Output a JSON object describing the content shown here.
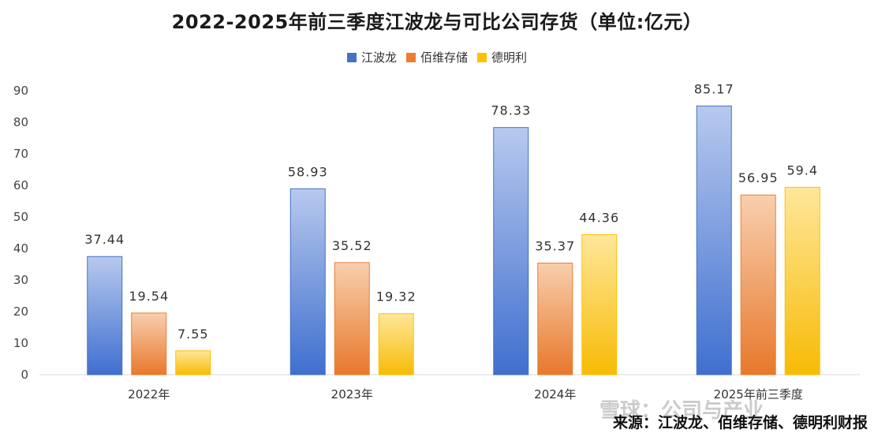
{
  "chart_data": {
    "type": "bar",
    "title": "2022-2025年前三季度江波龙与可比公司存货（单位:亿元）",
    "categories": [
      "2022年",
      "2023年",
      "2024年",
      "2025年前三季度"
    ],
    "series": [
      {
        "name": "江波龙",
        "values": [
          37.44,
          58.93,
          78.33,
          85.17
        ],
        "labels": [
          "37.44",
          "58.93",
          "78.33",
          "85.17"
        ],
        "color": "#4472C4"
      },
      {
        "name": "佰维存储",
        "values": [
          19.54,
          35.52,
          35.37,
          56.95
        ],
        "labels": [
          "19.54",
          "35.52",
          "35.37",
          "56.95"
        ],
        "color": "#ED7D31"
      },
      {
        "name": "德明利",
        "values": [
          7.55,
          19.32,
          44.36,
          59.4
        ],
        "labels": [
          "7.55",
          "19.32",
          "44.36",
          "59.4"
        ],
        "color": "#FFC000"
      }
    ],
    "ylim": [
      0,
      90
    ],
    "yticks": [
      "0",
      "10",
      "20",
      "30",
      "40",
      "50",
      "60",
      "70",
      "80",
      "90"
    ],
    "legend_position": "top-center",
    "grid": false
  },
  "source_text": "来源：江波龙、佰维存储、德明利财报",
  "watermark_text": "雪球：公司与产业"
}
